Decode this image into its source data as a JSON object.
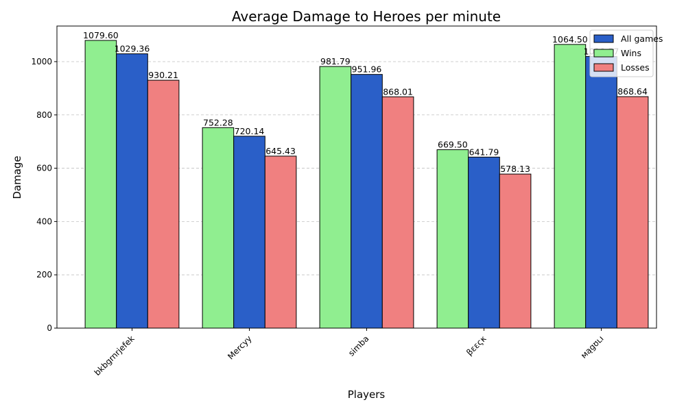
{
  "chart_data": {
    "type": "bar",
    "title": "Average Damage to Heroes per minute",
    "xlabel": "Players",
    "ylabel": "Damage",
    "categories": [
      "bkbgrnrjefek",
      "Mercyy",
      "simba",
      "βεεςκ",
      "мągʊʟı"
    ],
    "series": [
      {
        "name": "Wins",
        "color": "#90ee90",
        "values": [
          1079.6,
          752.28,
          981.79,
          669.5,
          1064.5
        ]
      },
      {
        "name": "All games",
        "color": "#2a5fc8",
        "values": [
          1029.36,
          720.14,
          951.96,
          641.79,
          1019.57
        ]
      },
      {
        "name": "Losses",
        "color": "#f08080",
        "values": [
          930.21,
          645.43,
          868.01,
          578.13,
          868.64
        ]
      }
    ],
    "yticks": [
      0,
      200,
      400,
      600,
      800,
      1000
    ],
    "ylim": [
      0,
      1133.58
    ],
    "grid": "y-dashed",
    "legend_position": "top-right",
    "legend_order": [
      "All games",
      "Wins",
      "Losses"
    ]
  }
}
